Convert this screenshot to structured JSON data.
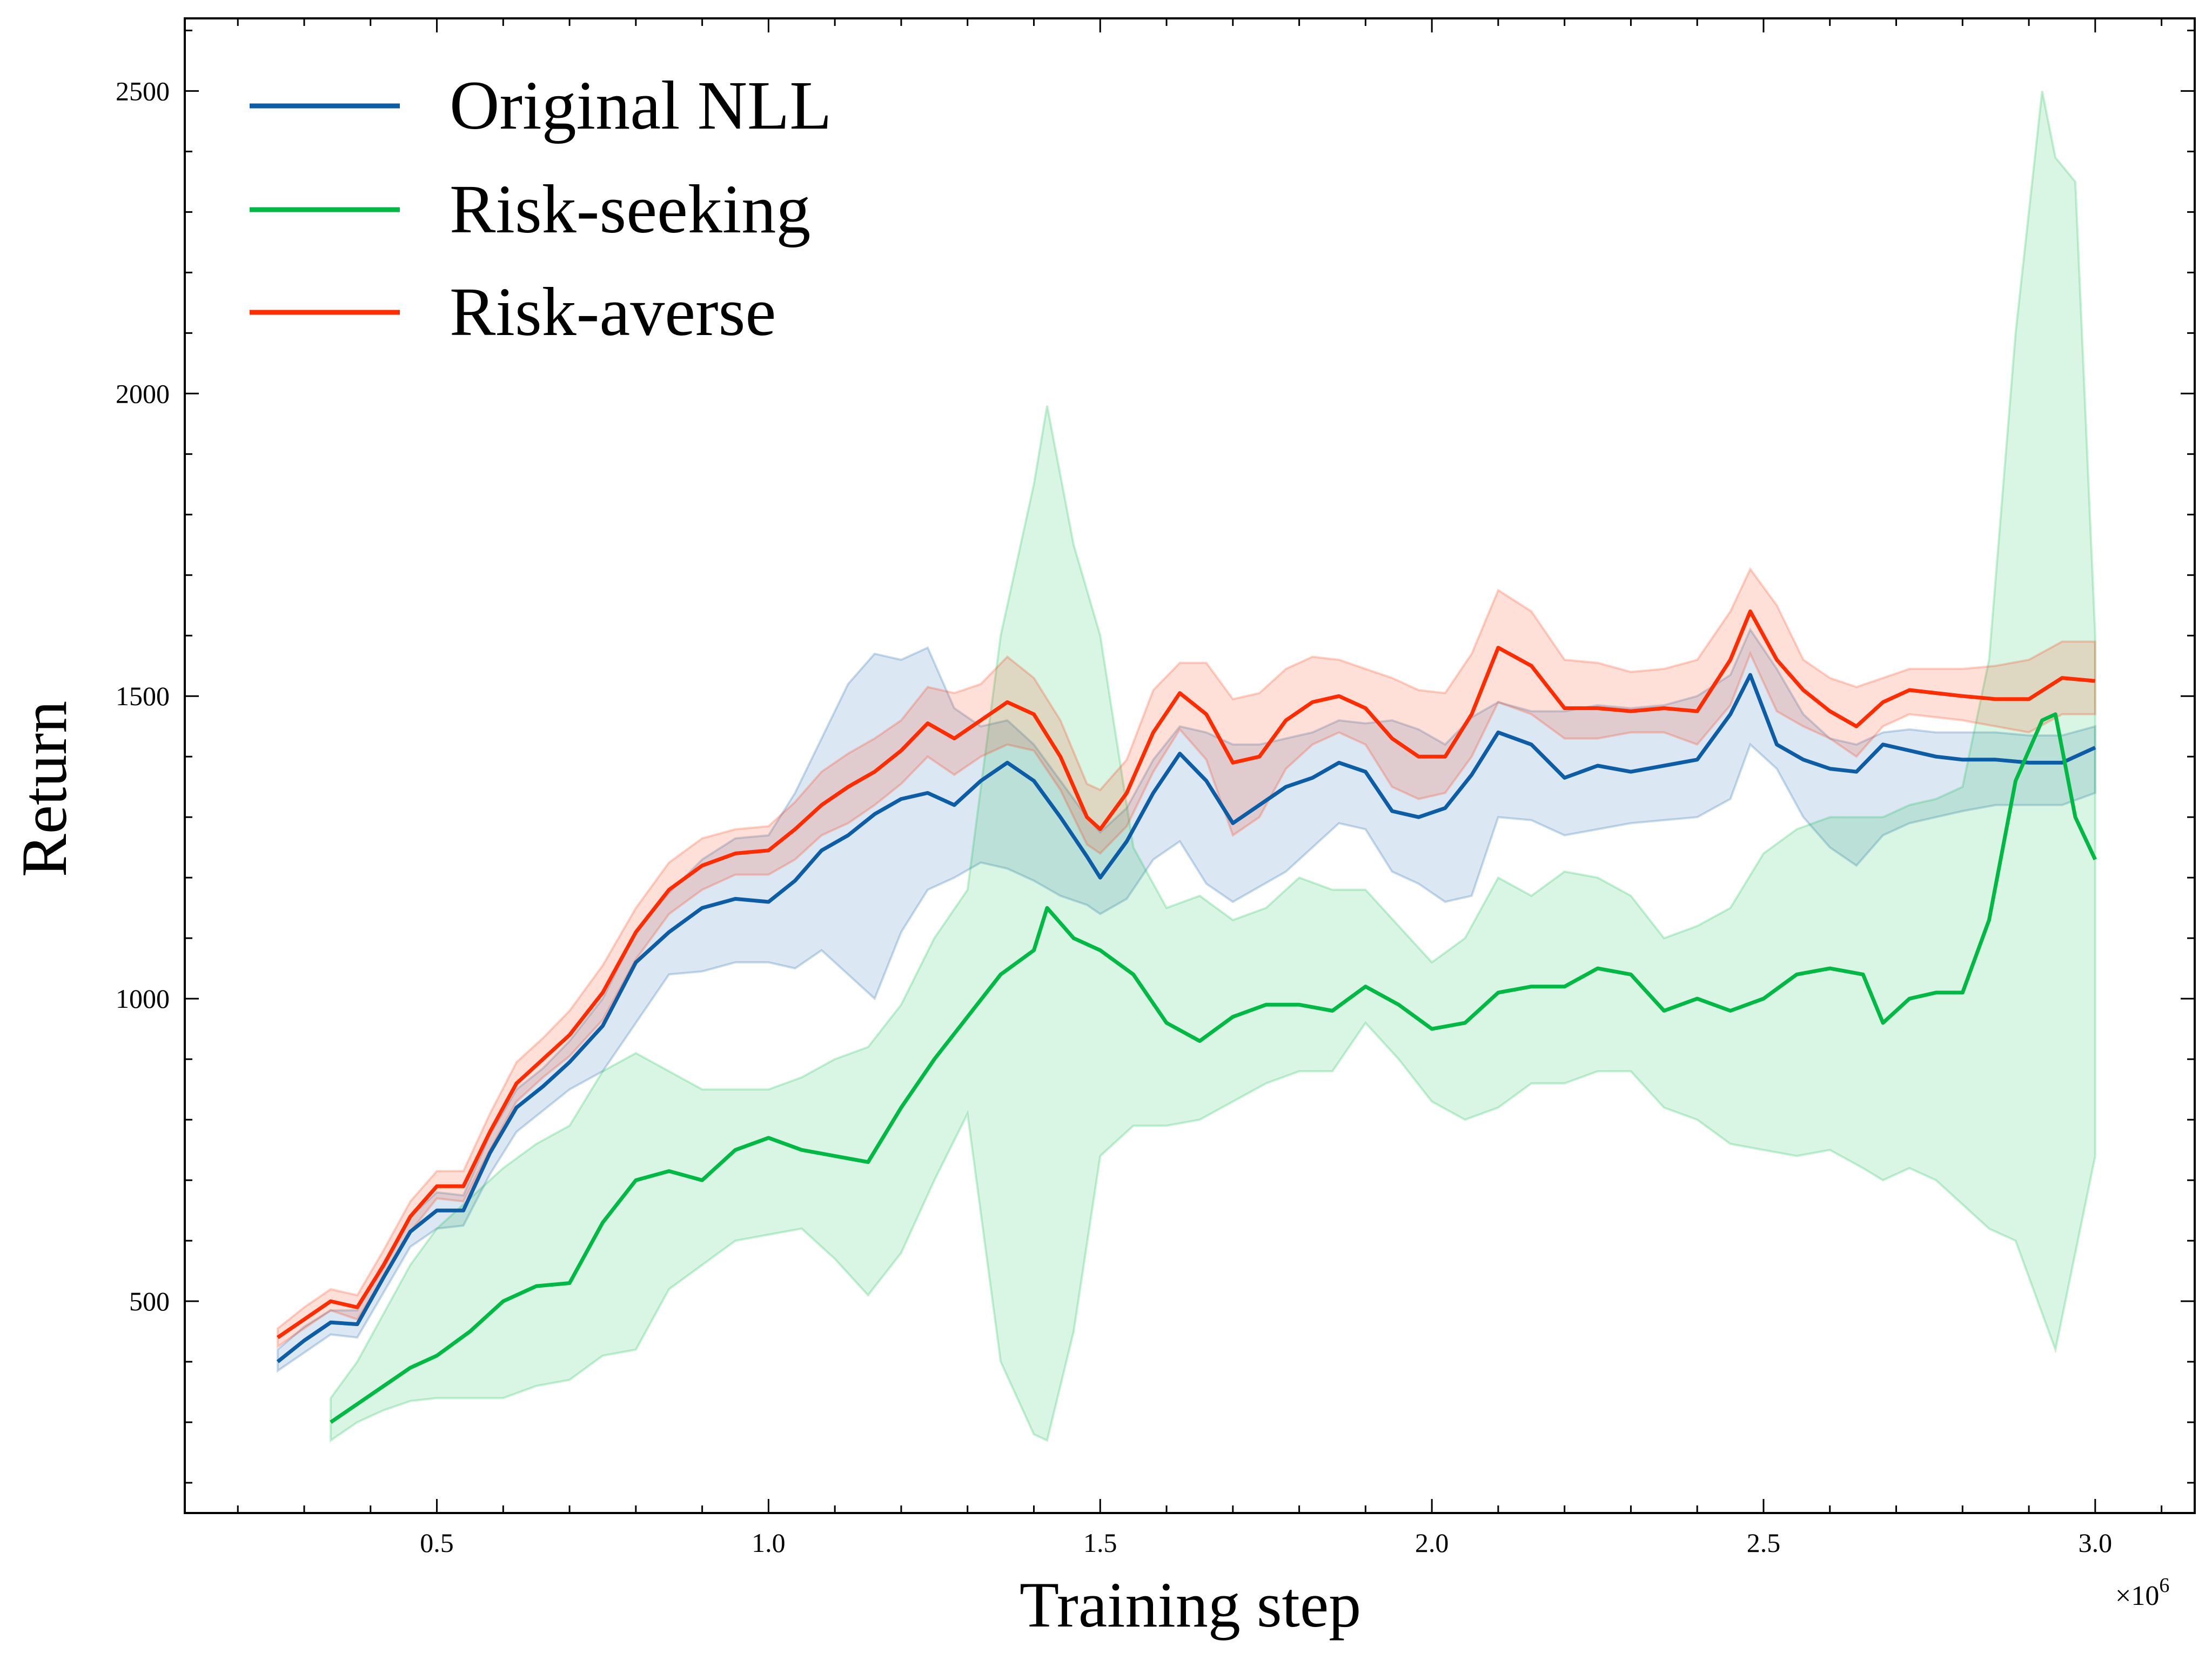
{
  "chart_data": {
    "type": "line",
    "title": "",
    "xlabel": "Training step",
    "ylabel": "Return",
    "x_scale_label": "×10",
    "x_scale_exponent": "6",
    "xlim": [
      0.12,
      3.15
    ],
    "ylim": [
      150,
      2620
    ],
    "x_ticks": [
      {
        "value": 0.5,
        "label": "0.5"
      },
      {
        "value": 1.0,
        "label": "1.0"
      },
      {
        "value": 1.5,
        "label": "1.5"
      },
      {
        "value": 2.0,
        "label": "2.0"
      },
      {
        "value": 2.5,
        "label": "2.5"
      },
      {
        "value": 3.0,
        "label": "3.0"
      }
    ],
    "y_ticks": [
      {
        "value": 500,
        "label": "500"
      },
      {
        "value": 1000,
        "label": "1000"
      },
      {
        "value": 1500,
        "label": "1500"
      },
      {
        "value": 2000,
        "label": "2000"
      },
      {
        "value": 2500,
        "label": "2500"
      }
    ],
    "legend_position": "top-left",
    "series": [
      {
        "name": "Original NLL",
        "color": "#0C5DA5",
        "x": [
          0.26,
          0.3,
          0.34,
          0.38,
          0.42,
          0.46,
          0.5,
          0.54,
          0.58,
          0.62,
          0.66,
          0.7,
          0.75,
          0.8,
          0.85,
          0.9,
          0.95,
          1.0,
          1.04,
          1.08,
          1.12,
          1.16,
          1.2,
          1.24,
          1.28,
          1.32,
          1.36,
          1.4,
          1.44,
          1.48,
          1.5,
          1.54,
          1.58,
          1.62,
          1.66,
          1.7,
          1.74,
          1.78,
          1.82,
          1.86,
          1.9,
          1.94,
          1.98,
          2.02,
          2.06,
          2.1,
          2.15,
          2.2,
          2.25,
          2.3,
          2.35,
          2.4,
          2.45,
          2.48,
          2.52,
          2.56,
          2.6,
          2.64,
          2.68,
          2.72,
          2.76,
          2.8,
          2.85,
          2.9,
          2.95,
          3.0
        ],
        "y": [
          400,
          435,
          465,
          462,
          540,
          615,
          650,
          650,
          745,
          820,
          855,
          895,
          955,
          1060,
          1110,
          1150,
          1165,
          1160,
          1195,
          1245,
          1270,
          1305,
          1330,
          1340,
          1320,
          1360,
          1390,
          1360,
          1300,
          1235,
          1200,
          1260,
          1340,
          1405,
          1360,
          1290,
          1320,
          1350,
          1365,
          1390,
          1375,
          1310,
          1300,
          1315,
          1370,
          1440,
          1420,
          1365,
          1385,
          1375,
          1385,
          1395,
          1470,
          1535,
          1420,
          1395,
          1380,
          1375,
          1420,
          1410,
          1400,
          1395,
          1395,
          1390,
          1390,
          1415
        ],
        "upper": [
          420,
          458,
          485,
          485,
          565,
          640,
          680,
          675,
          775,
          850,
          885,
          930,
          1000,
          1110,
          1175,
          1230,
          1265,
          1270,
          1340,
          1430,
          1520,
          1570,
          1560,
          1580,
          1480,
          1450,
          1460,
          1420,
          1360,
          1300,
          1275,
          1315,
          1395,
          1450,
          1440,
          1420,
          1420,
          1430,
          1440,
          1460,
          1455,
          1460,
          1445,
          1420,
          1465,
          1490,
          1475,
          1475,
          1485,
          1480,
          1485,
          1500,
          1535,
          1610,
          1545,
          1470,
          1430,
          1420,
          1440,
          1445,
          1440,
          1440,
          1440,
          1435,
          1435,
          1450
        ],
        "lower": [
          385,
          415,
          445,
          440,
          515,
          590,
          620,
          625,
          710,
          780,
          815,
          850,
          880,
          960,
          1040,
          1045,
          1060,
          1060,
          1050,
          1080,
          1040,
          1000,
          1110,
          1180,
          1200,
          1225,
          1215,
          1195,
          1170,
          1155,
          1140,
          1165,
          1230,
          1260,
          1190,
          1160,
          1185,
          1210,
          1250,
          1290,
          1280,
          1210,
          1190,
          1160,
          1170,
          1300,
          1295,
          1270,
          1280,
          1290,
          1295,
          1300,
          1330,
          1420,
          1380,
          1300,
          1250,
          1220,
          1270,
          1290,
          1300,
          1310,
          1320,
          1320,
          1320,
          1340
        ]
      },
      {
        "name": "Risk-seeking",
        "color": "#00B945",
        "x": [
          0.34,
          0.38,
          0.42,
          0.46,
          0.5,
          0.55,
          0.6,
          0.65,
          0.7,
          0.75,
          0.8,
          0.85,
          0.9,
          0.95,
          1.0,
          1.05,
          1.1,
          1.15,
          1.2,
          1.25,
          1.3,
          1.35,
          1.4,
          1.42,
          1.46,
          1.5,
          1.55,
          1.6,
          1.65,
          1.7,
          1.75,
          1.8,
          1.85,
          1.9,
          1.95,
          2.0,
          2.05,
          2.1,
          2.15,
          2.2,
          2.25,
          2.3,
          2.35,
          2.4,
          2.45,
          2.5,
          2.55,
          2.6,
          2.65,
          2.68,
          2.72,
          2.76,
          2.8,
          2.84,
          2.88,
          2.92,
          2.94,
          2.97,
          3.0
        ],
        "y": [
          300,
          330,
          360,
          390,
          410,
          450,
          500,
          525,
          530,
          630,
          700,
          715,
          700,
          750,
          770,
          750,
          740,
          730,
          820,
          900,
          970,
          1040,
          1080,
          1150,
          1100,
          1080,
          1040,
          960,
          930,
          970,
          990,
          990,
          980,
          1020,
          990,
          950,
          960,
          1010,
          1020,
          1020,
          1050,
          1040,
          980,
          1000,
          980,
          1000,
          1040,
          1050,
          1040,
          960,
          1000,
          1010,
          1010,
          1130,
          1360,
          1460,
          1470,
          1300,
          1230
        ],
        "upper": [
          340,
          400,
          480,
          560,
          620,
          670,
          720,
          760,
          790,
          880,
          910,
          880,
          850,
          850,
          850,
          870,
          900,
          920,
          990,
          1100,
          1180,
          1600,
          1850,
          1980,
          1750,
          1600,
          1250,
          1150,
          1170,
          1130,
          1150,
          1200,
          1180,
          1180,
          1120,
          1060,
          1100,
          1200,
          1170,
          1210,
          1200,
          1170,
          1100,
          1120,
          1150,
          1240,
          1280,
          1300,
          1300,
          1300,
          1320,
          1330,
          1350,
          1560,
          2100,
          2500,
          2390,
          2350,
          1600
        ],
        "lower": [
          270,
          300,
          320,
          335,
          340,
          340,
          340,
          360,
          370,
          410,
          420,
          520,
          560,
          600,
          610,
          620,
          570,
          510,
          580,
          700,
          810,
          400,
          280,
          270,
          450,
          740,
          790,
          790,
          800,
          830,
          860,
          880,
          880,
          960,
          900,
          830,
          800,
          820,
          860,
          860,
          880,
          880,
          820,
          800,
          760,
          750,
          740,
          750,
          720,
          700,
          720,
          700,
          660,
          620,
          600,
          480,
          420,
          580,
          740
        ]
      },
      {
        "name": "Risk-averse",
        "color": "#FF2C00",
        "x": [
          0.26,
          0.3,
          0.34,
          0.38,
          0.42,
          0.46,
          0.5,
          0.54,
          0.58,
          0.62,
          0.66,
          0.7,
          0.75,
          0.8,
          0.85,
          0.9,
          0.95,
          1.0,
          1.04,
          1.08,
          1.12,
          1.16,
          1.2,
          1.24,
          1.28,
          1.32,
          1.36,
          1.4,
          1.44,
          1.48,
          1.5,
          1.54,
          1.58,
          1.62,
          1.66,
          1.7,
          1.74,
          1.78,
          1.82,
          1.86,
          1.9,
          1.94,
          1.98,
          2.02,
          2.06,
          2.1,
          2.15,
          2.2,
          2.25,
          2.3,
          2.35,
          2.4,
          2.45,
          2.48,
          2.52,
          2.56,
          2.6,
          2.64,
          2.68,
          2.72,
          2.76,
          2.8,
          2.85,
          2.9,
          2.95,
          3.0
        ],
        "y": [
          440,
          470,
          500,
          490,
          560,
          640,
          690,
          690,
          780,
          860,
          900,
          940,
          1010,
          1110,
          1180,
          1220,
          1240,
          1245,
          1280,
          1320,
          1350,
          1375,
          1410,
          1455,
          1430,
          1460,
          1490,
          1470,
          1400,
          1300,
          1280,
          1340,
          1440,
          1505,
          1470,
          1390,
          1400,
          1460,
          1490,
          1500,
          1480,
          1430,
          1400,
          1400,
          1470,
          1580,
          1550,
          1480,
          1480,
          1475,
          1480,
          1475,
          1560,
          1640,
          1560,
          1510,
          1475,
          1450,
          1490,
          1510,
          1505,
          1500,
          1495,
          1495,
          1530,
          1525
        ],
        "upper": [
          455,
          490,
          520,
          510,
          585,
          665,
          715,
          715,
          810,
          895,
          935,
          980,
          1055,
          1150,
          1225,
          1265,
          1280,
          1285,
          1325,
          1375,
          1405,
          1430,
          1460,
          1515,
          1505,
          1520,
          1565,
          1530,
          1460,
          1355,
          1345,
          1395,
          1510,
          1555,
          1555,
          1495,
          1505,
          1545,
          1565,
          1560,
          1545,
          1530,
          1510,
          1505,
          1570,
          1675,
          1640,
          1560,
          1555,
          1540,
          1545,
          1560,
          1640,
          1710,
          1650,
          1560,
          1530,
          1515,
          1530,
          1545,
          1545,
          1545,
          1550,
          1560,
          1590,
          1590
        ],
        "lower": [
          425,
          455,
          485,
          470,
          540,
          615,
          670,
          665,
          750,
          830,
          870,
          905,
          965,
          1065,
          1140,
          1180,
          1205,
          1205,
          1230,
          1270,
          1290,
          1320,
          1355,
          1400,
          1370,
          1400,
          1420,
          1410,
          1345,
          1255,
          1240,
          1285,
          1375,
          1445,
          1395,
          1270,
          1300,
          1380,
          1420,
          1440,
          1420,
          1350,
          1330,
          1340,
          1400,
          1490,
          1470,
          1430,
          1430,
          1440,
          1440,
          1420,
          1485,
          1570,
          1475,
          1450,
          1430,
          1400,
          1450,
          1470,
          1465,
          1460,
          1450,
          1440,
          1470,
          1470
        ]
      }
    ]
  }
}
